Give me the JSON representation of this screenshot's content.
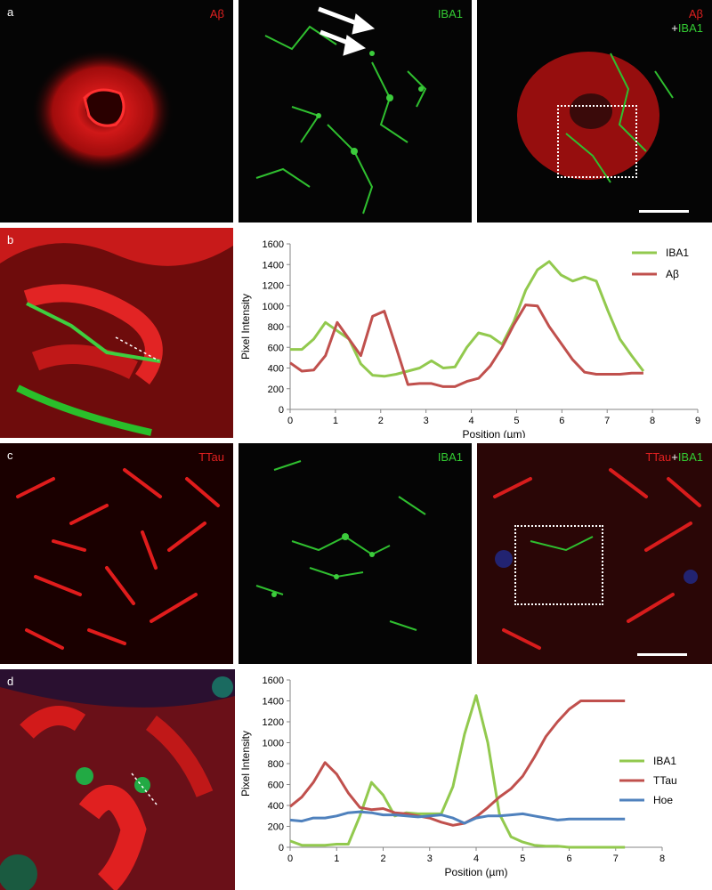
{
  "panels": {
    "a": {
      "label": "a",
      "left_channel": "Aβ",
      "mid_channel": "IBA1",
      "merge_channel_top": "Aβ",
      "merge_channel_plus": "+",
      "merge_channel_bottom": "IBA1"
    },
    "b": {
      "label": "b"
    },
    "c": {
      "label": "c",
      "left_channel": "TTau",
      "mid_channel": "IBA1",
      "merge_channel_a": "TTau",
      "merge_channel_plus": "+",
      "merge_channel_b": "IBA1"
    },
    "d": {
      "label": "d"
    }
  },
  "colors": {
    "iba1": "#92c94e",
    "abeta": "#c0504d",
    "ttau": "#c0504d",
    "hoe": "#4f81bd"
  },
  "chart_data": [
    {
      "type": "line",
      "xlabel": "Position (µm)",
      "ylabel": "Pixel Intensity",
      "xlim": [
        0,
        9
      ],
      "ylim": [
        0,
        1600
      ],
      "xticks": [
        0,
        1,
        2,
        3,
        4,
        5,
        6,
        7,
        8,
        9
      ],
      "yticks": [
        0,
        200,
        400,
        600,
        800,
        1000,
        1200,
        1400,
        1600
      ],
      "legend_position": "top-right",
      "series": [
        {
          "name": "IBA1",
          "color": "#92c94e",
          "x": [
            0,
            0.26,
            0.52,
            0.78,
            1.04,
            1.3,
            1.56,
            1.82,
            2.08,
            2.34,
            2.6,
            2.86,
            3.12,
            3.38,
            3.64,
            3.9,
            4.16,
            4.42,
            4.68,
            4.94,
            5.2,
            5.46,
            5.72,
            5.98,
            6.24,
            6.5,
            6.76,
            7.02,
            7.28,
            7.54,
            7.8
          ],
          "y": [
            580,
            580,
            680,
            840,
            760,
            680,
            440,
            330,
            320,
            340,
            370,
            400,
            470,
            400,
            410,
            600,
            740,
            710,
            630,
            850,
            1150,
            1350,
            1430,
            1300,
            1240,
            1280,
            1240,
            950,
            680,
            520,
            370
          ]
        },
        {
          "name": "Aβ",
          "color": "#c0504d",
          "x": [
            0,
            0.26,
            0.52,
            0.78,
            1.04,
            1.3,
            1.56,
            1.82,
            2.08,
            2.34,
            2.6,
            2.86,
            3.12,
            3.38,
            3.64,
            3.9,
            4.16,
            4.42,
            4.68,
            4.94,
            5.2,
            5.46,
            5.72,
            5.98,
            6.24,
            6.5,
            6.76,
            7.02,
            7.28,
            7.54,
            7.8
          ],
          "y": [
            450,
            370,
            380,
            520,
            840,
            680,
            520,
            900,
            950,
            600,
            240,
            250,
            250,
            220,
            220,
            270,
            300,
            420,
            600,
            820,
            1010,
            1000,
            800,
            640,
            480,
            360,
            340,
            340,
            340,
            350,
            350
          ]
        }
      ]
    },
    {
      "type": "line",
      "xlabel": "Position (µm)",
      "ylabel": "Pixel Intensity",
      "xlim": [
        0,
        8
      ],
      "ylim": [
        0,
        1600
      ],
      "xticks": [
        0,
        1,
        2,
        3,
        4,
        5,
        6,
        7,
        8
      ],
      "yticks": [
        0,
        200,
        400,
        600,
        800,
        1000,
        1200,
        1400,
        1600
      ],
      "legend_position": "right",
      "series": [
        {
          "name": "IBA1",
          "color": "#92c94e",
          "x": [
            0,
            0.25,
            0.5,
            0.75,
            1,
            1.25,
            1.5,
            1.75,
            2,
            2.25,
            2.5,
            2.75,
            3,
            3.25,
            3.5,
            3.75,
            4,
            4.25,
            4.5,
            4.75,
            5,
            5.25,
            5.5,
            5.75,
            6,
            6.25,
            6.5,
            6.75,
            7,
            7.2
          ],
          "y": [
            60,
            20,
            20,
            20,
            30,
            30,
            300,
            620,
            500,
            300,
            330,
            320,
            320,
            320,
            580,
            1080,
            1450,
            1000,
            320,
            100,
            50,
            20,
            10,
            10,
            0,
            0,
            0,
            0,
            0,
            0
          ]
        },
        {
          "name": "TTau",
          "color": "#c0504d",
          "x": [
            0,
            0.25,
            0.5,
            0.75,
            1,
            1.25,
            1.5,
            1.75,
            2,
            2.25,
            2.5,
            2.75,
            3,
            3.25,
            3.5,
            3.75,
            4,
            4.25,
            4.5,
            4.75,
            5,
            5.25,
            5.5,
            5.75,
            6,
            6.25,
            6.5,
            6.75,
            7,
            7.2
          ],
          "y": [
            390,
            480,
            620,
            810,
            700,
            520,
            380,
            360,
            370,
            330,
            320,
            300,
            280,
            240,
            210,
            230,
            290,
            380,
            480,
            560,
            680,
            860,
            1060,
            1200,
            1320,
            1400,
            1400,
            1400,
            1400,
            1400
          ]
        },
        {
          "name": "Hoe",
          "color": "#4f81bd",
          "x": [
            0,
            0.25,
            0.5,
            0.75,
            1,
            1.25,
            1.5,
            1.75,
            2,
            2.25,
            2.5,
            2.75,
            3,
            3.25,
            3.5,
            3.75,
            4,
            4.25,
            4.5,
            4.75,
            5,
            5.25,
            5.5,
            5.75,
            6,
            6.25,
            6.5,
            6.75,
            7,
            7.2
          ],
          "y": [
            260,
            250,
            280,
            280,
            300,
            330,
            340,
            330,
            310,
            310,
            300,
            290,
            300,
            310,
            280,
            230,
            280,
            300,
            300,
            310,
            320,
            300,
            280,
            260,
            270,
            270,
            270,
            270,
            270,
            270
          ]
        }
      ]
    }
  ]
}
